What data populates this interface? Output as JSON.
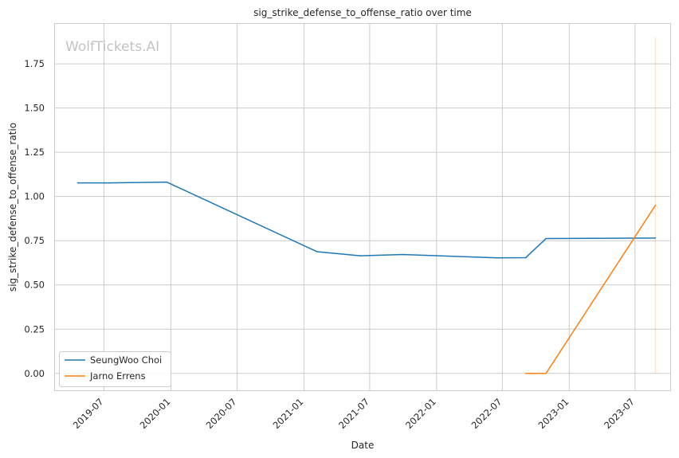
{
  "chart_data": {
    "type": "line",
    "title": "sig_strike_defense_to_offense_ratio over time",
    "xlabel": "Date",
    "ylabel": "sig_strike_defense_to_offense_ratio",
    "watermark": "WolfTickets.AI",
    "x_ticks": [
      "2019-07",
      "2020-01",
      "2020-07",
      "2021-01",
      "2021-07",
      "2022-01",
      "2022-07",
      "2023-01",
      "2023-07"
    ],
    "y_ticks": [
      "0.00",
      "0.25",
      "0.50",
      "0.75",
      "1.00",
      "1.25",
      "1.50",
      "1.75"
    ],
    "xlim": [
      "2019-02-14",
      "2023-10-08"
    ],
    "ylim": [
      -0.1,
      1.98
    ],
    "grid": true,
    "legend_position": "lower-left",
    "series": [
      {
        "name": "SeungWoo Choi",
        "color": "#1f77b4",
        "points": [
          {
            "x": "2019-04-20",
            "y": 1.077
          },
          {
            "x": "2019-07-15",
            "y": 1.077
          },
          {
            "x": "2019-12-21",
            "y": 1.081
          },
          {
            "x": "2021-02-06",
            "y": 0.688
          },
          {
            "x": "2021-06-05",
            "y": 0.665
          },
          {
            "x": "2021-10-02",
            "y": 0.672
          },
          {
            "x": "2022-06-18",
            "y": 0.653
          },
          {
            "x": "2022-09-03",
            "y": 0.654
          },
          {
            "x": "2022-10-29",
            "y": 0.762
          },
          {
            "x": "2023-08-26",
            "y": 0.765
          }
        ]
      },
      {
        "name": "Jarno Errens",
        "color": "#ff7f0e",
        "points": [
          {
            "x": "2022-09-03",
            "y": 0.0
          },
          {
            "x": "2022-10-29",
            "y": 0.0
          },
          {
            "x": "2023-08-26",
            "y": 0.95
          }
        ],
        "band": {
          "x": "2023-08-26",
          "low": 0.0,
          "high": 1.9
        }
      }
    ]
  }
}
